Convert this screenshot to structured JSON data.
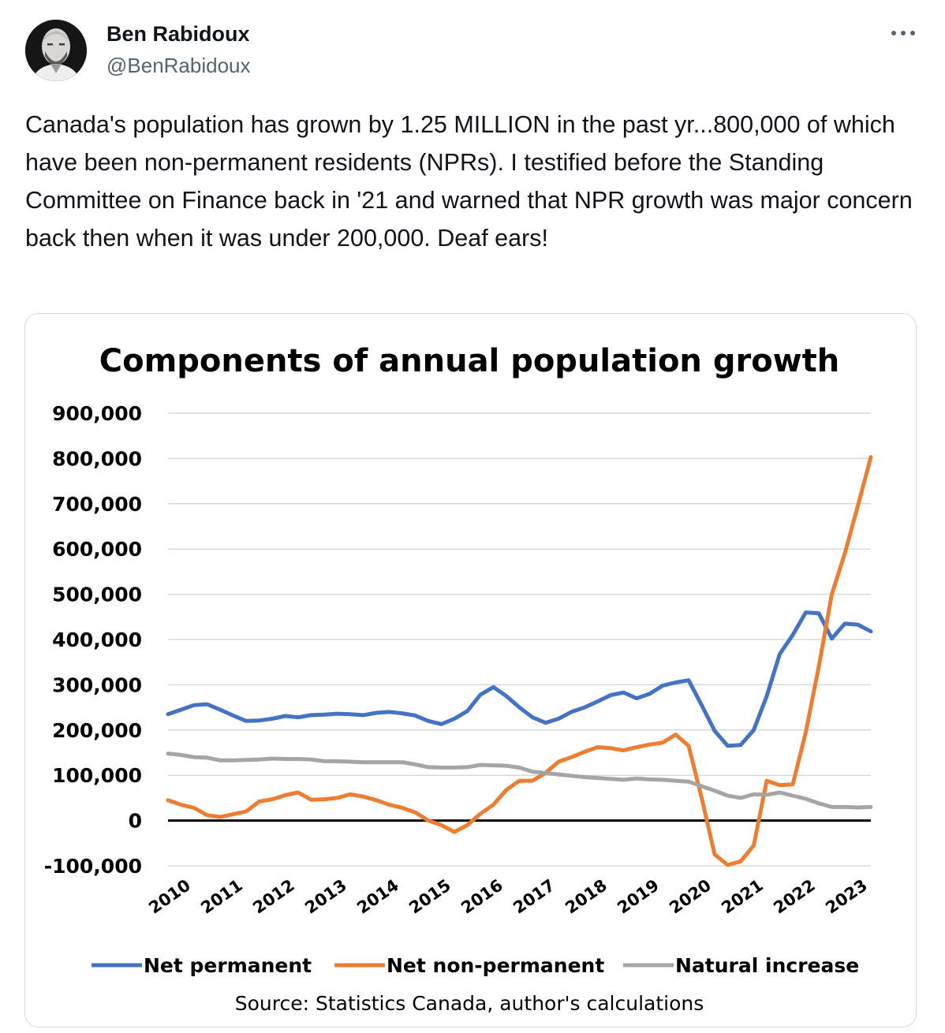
{
  "author": {
    "name": "Ben Rabidoux",
    "handle": "@BenRabidoux"
  },
  "more_icon": "ellipsis-icon",
  "tweet": {
    "text": "Canada's population has grown by 1.25 MILLION in the past yr...800,000 of which have been non-permanent residents (NPRs). I testified before the Standing Committee on Finance back in '21 and warned that NPR growth was major concern back then when it was under 200,000. Deaf ears!"
  },
  "colors": {
    "net_permanent": "#4472c4",
    "net_non_permanent": "#ed7d31",
    "natural_increase": "#a5a5a5"
  },
  "chart_data": {
    "type": "line",
    "title": "Components of annual population growth",
    "source": "Source: Statistics Canada, author's calculations",
    "ylim": [
      -100000,
      900000
    ],
    "yticks": [
      "900,000",
      "800,000",
      "700,000",
      "600,000",
      "500,000",
      "400,000",
      "300,000",
      "200,000",
      "100,000",
      "0",
      "-100,000"
    ],
    "ytick_values": [
      900000,
      800000,
      700000,
      600000,
      500000,
      400000,
      300000,
      200000,
      100000,
      0,
      -100000
    ],
    "xtick_labels": [
      "2010",
      "2011",
      "2012",
      "2013",
      "2014",
      "2015",
      "2016",
      "2017",
      "2018",
      "2019",
      "2020",
      "2021",
      "2022",
      "2023"
    ],
    "x_start": 2010,
    "x_step": 0.25,
    "series": [
      {
        "name": "Net permanent",
        "color_key": "net_permanent",
        "values": [
          235000,
          245000,
          255000,
          257000,
          245000,
          232000,
          220000,
          221000,
          225000,
          231000,
          228000,
          233000,
          234000,
          236000,
          235000,
          233000,
          238000,
          240000,
          237000,
          232000,
          220000,
          213000,
          225000,
          242000,
          278000,
          295000,
          275000,
          250000,
          228000,
          216000,
          225000,
          240000,
          250000,
          263000,
          277000,
          283000,
          270000,
          280000,
          298000,
          305000,
          310000,
          255000,
          198000,
          165000,
          167000,
          200000,
          275000,
          368000,
          410000,
          460000,
          458000,
          402000,
          435000,
          433000,
          418000
        ]
      },
      {
        "name": "Net non-permanent",
        "color_key": "net_non_permanent",
        "values": [
          45000,
          35000,
          28000,
          12000,
          8000,
          14000,
          20000,
          42000,
          47000,
          56000,
          62000,
          46000,
          47000,
          50000,
          58000,
          53000,
          45000,
          35000,
          28000,
          18000,
          0,
          -10000,
          -25000,
          -10000,
          15000,
          35000,
          68000,
          88000,
          88000,
          105000,
          130000,
          140000,
          152000,
          162000,
          160000,
          155000,
          162000,
          168000,
          172000,
          190000,
          165000,
          50000,
          -75000,
          -98000,
          -90000,
          -55000,
          88000,
          78000,
          80000,
          195000,
          340000,
          500000,
          590000,
          695000,
          803000
        ]
      },
      {
        "name": "Natural increase",
        "color_key": "natural_increase",
        "values": [
          148000,
          145000,
          140000,
          139000,
          133000,
          133000,
          134000,
          135000,
          137000,
          136000,
          136000,
          135000,
          131000,
          131000,
          130000,
          129000,
          129000,
          129000,
          129000,
          124000,
          118000,
          117000,
          117000,
          118000,
          123000,
          122000,
          121000,
          117000,
          108000,
          105000,
          102000,
          99000,
          96000,
          94000,
          92000,
          90000,
          93000,
          91000,
          90000,
          88000,
          86000,
          76000,
          66000,
          55000,
          50000,
          58000,
          57000,
          62000,
          55000,
          48000,
          38000,
          30000,
          30000,
          29000,
          30000
        ]
      }
    ]
  }
}
